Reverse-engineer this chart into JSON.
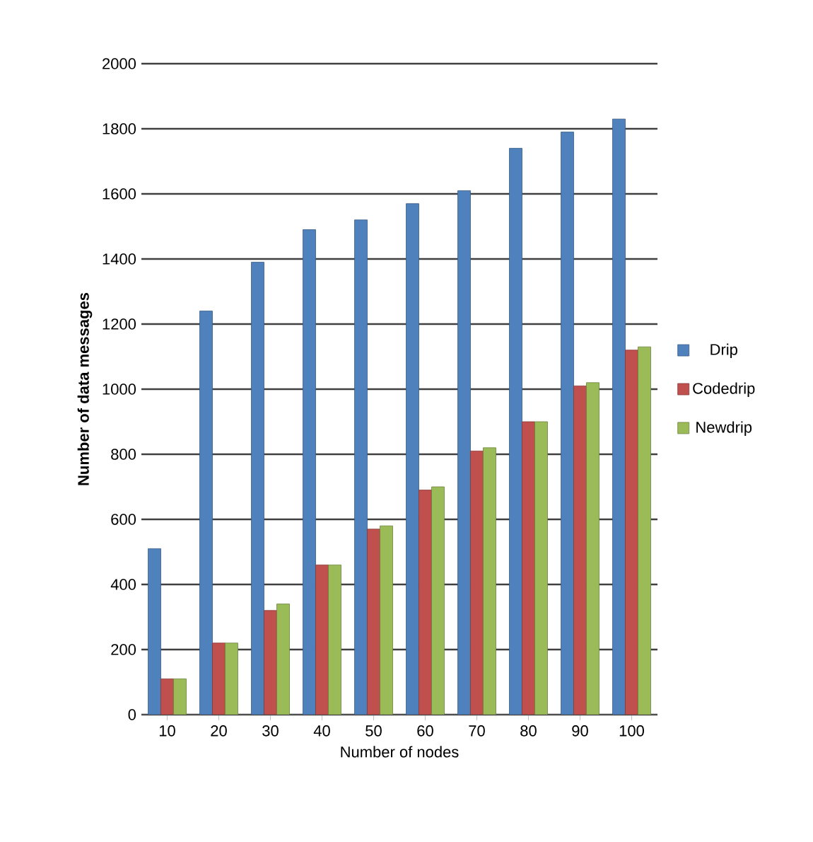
{
  "chart_data": {
    "type": "bar",
    "xlabel": "Number of nodes",
    "ylabel": "Number of data messages",
    "categories": [
      "10",
      "20",
      "30",
      "40",
      "50",
      "60",
      "70",
      "80",
      "90",
      "100"
    ],
    "series": [
      {
        "name": "Drip",
        "color": "#4f81bd",
        "values": [
          510,
          1240,
          1390,
          1490,
          1520,
          1570,
          1610,
          1740,
          1790,
          1830
        ]
      },
      {
        "name": "Codedrip",
        "color": "#c0504d",
        "values": [
          110,
          220,
          320,
          460,
          570,
          690,
          810,
          900,
          1010,
          1120
        ]
      },
      {
        "name": "Newdrip",
        "color": "#9bbb59",
        "values": [
          110,
          220,
          340,
          460,
          580,
          700,
          820,
          900,
          1020,
          1130
        ]
      }
    ],
    "ylim": [
      0,
      2000
    ],
    "yticks": [
      0,
      200,
      400,
      600,
      800,
      1000,
      1200,
      1400,
      1600,
      1800,
      2000
    ],
    "grid": "y",
    "legend": "right"
  }
}
